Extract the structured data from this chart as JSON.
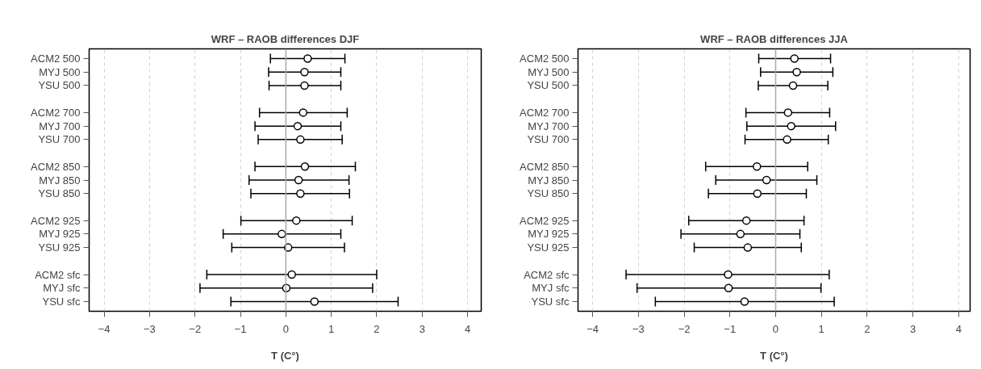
{
  "chart_data": [
    {
      "type": "scatter",
      "orientation": "horizontal",
      "title": "WRF – RAOB differences DJF",
      "xlabel": "T (C°)",
      "categories": [
        "ACM2 500",
        "MYJ 500",
        "YSU 500",
        null,
        "ACM2 700",
        "MYJ 700",
        "YSU 700",
        null,
        "ACM2 850",
        "MYJ 850",
        "YSU 850",
        null,
        "ACM2 925",
        "MYJ 925",
        "YSU 925",
        null,
        "ACM2 sfc",
        "MYJ sfc",
        "YSU sfc"
      ],
      "values": [
        0.48,
        0.41,
        0.41,
        null,
        0.38,
        0.26,
        0.32,
        null,
        0.42,
        0.28,
        0.32,
        null,
        0.23,
        -0.09,
        0.05,
        null,
        0.13,
        0.01,
        0.63
      ],
      "errors": [
        [
          -0.34,
          1.3
        ],
        [
          -0.38,
          1.21
        ],
        [
          -0.37,
          1.21
        ],
        null,
        [
          -0.58,
          1.35
        ],
        [
          -0.68,
          1.21
        ],
        [
          -0.61,
          1.24
        ],
        null,
        [
          -0.68,
          1.53
        ],
        [
          -0.81,
          1.39
        ],
        [
          -0.77,
          1.4
        ],
        null,
        [
          -0.99,
          1.46
        ],
        [
          -1.38,
          1.21
        ],
        [
          -1.19,
          1.29
        ],
        null,
        [
          -1.74,
          2.0
        ],
        [
          -1.89,
          1.91
        ],
        [
          -1.21,
          2.47
        ]
      ],
      "color": "#000000",
      "marker": "circle",
      "grid": "x",
      "xlim": [
        -4.33,
        4.3
      ],
      "xticks": [
        -4,
        -3,
        -2,
        -1,
        0,
        1,
        2,
        3,
        4
      ],
      "ref_lines": [
        {
          "axis": "x",
          "value": 0,
          "color": "#aaaaaa"
        }
      ]
    },
    {
      "type": "scatter",
      "orientation": "horizontal",
      "title": "WRF – RAOB differences JJA",
      "xlabel": "T (C°)",
      "categories": [
        "ACM2 500",
        "MYJ 500",
        "YSU 500",
        null,
        "ACM2 700",
        "MYJ 700",
        "YSU 700",
        null,
        "ACM2 850",
        "MYJ 850",
        "YSU 850",
        null,
        "ACM2 925",
        "MYJ 925",
        "YSU 925",
        null,
        "ACM2 sfc",
        "MYJ sfc",
        "YSU sfc"
      ],
      "values": [
        0.41,
        0.46,
        0.38,
        null,
        0.27,
        0.34,
        0.25,
        null,
        -0.41,
        -0.2,
        -0.4,
        null,
        -0.64,
        -0.77,
        -0.61,
        null,
        -1.04,
        -1.03,
        -0.68
      ],
      "errors": [
        [
          -0.37,
          1.2
        ],
        [
          -0.33,
          1.25
        ],
        [
          -0.38,
          1.14
        ],
        null,
        [
          -0.65,
          1.18
        ],
        [
          -0.63,
          1.31
        ],
        [
          -0.67,
          1.15
        ],
        null,
        [
          -1.53,
          0.7
        ],
        [
          -1.31,
          0.9
        ],
        [
          -1.47,
          0.67
        ],
        null,
        [
          -1.9,
          0.62
        ],
        [
          -2.07,
          0.53
        ],
        [
          -1.78,
          0.56
        ],
        null,
        [
          -3.27,
          1.17
        ],
        [
          -3.03,
          0.99
        ],
        [
          -2.63,
          1.28
        ]
      ],
      "color": "#000000",
      "marker": "circle",
      "grid": "x",
      "xlim": [
        -4.32,
        4.25
      ],
      "xticks": [
        -4,
        -3,
        -2,
        -1,
        0,
        1,
        2,
        3,
        4
      ],
      "ref_lines": [
        {
          "axis": "x",
          "value": 0,
          "color": "#aaaaaa"
        }
      ]
    }
  ]
}
